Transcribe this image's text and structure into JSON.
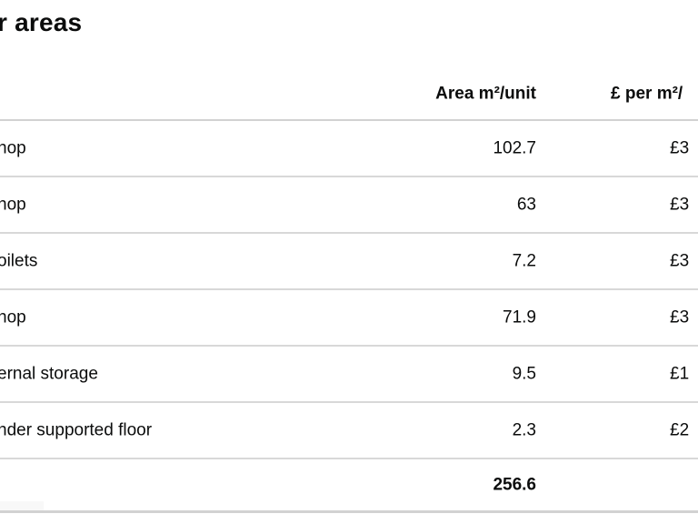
{
  "page": {
    "title_fragment": "r areas"
  },
  "table": {
    "headers": {
      "area": "Area m²/unit",
      "price": "£ per m²/"
    },
    "rows": [
      {
        "label": "hop",
        "area": "102.7",
        "price": "£3"
      },
      {
        "label": "hop",
        "area": "63",
        "price": "£3"
      },
      {
        "label": "oilets",
        "area": "7.2",
        "price": "£3"
      },
      {
        "label": "hop",
        "area": "71.9",
        "price": "£3"
      },
      {
        "label": "ernal storage",
        "area": "9.5",
        "price": "£1"
      },
      {
        "label": "nder supported floor",
        "area": "2.3",
        "price": "£2"
      }
    ],
    "total": {
      "area": "256.6"
    }
  },
  "colors": {
    "text": "#0b0c0c",
    "row_border": "#d8d8d8",
    "background": "#ffffff"
  }
}
